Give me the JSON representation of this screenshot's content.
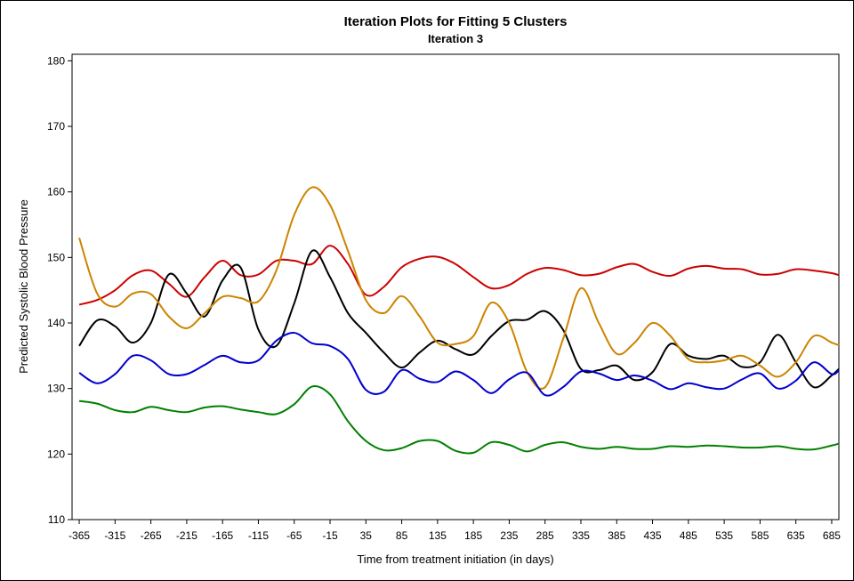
{
  "chart_data": {
    "type": "line",
    "title": "Iteration Plots for Fitting 5 Clusters",
    "subtitle": "Iteration 3",
    "xlabel": "Time from treatment initiation (in days)",
    "ylabel": "Predicted Systolic Blood Pressure",
    "xlim": [
      -375,
      695
    ],
    "ylim": [
      110,
      181
    ],
    "x_ticks": [
      -365,
      -315,
      -265,
      -215,
      -165,
      -115,
      -65,
      -15,
      35,
      85,
      135,
      185,
      235,
      285,
      335,
      385,
      435,
      485,
      535,
      585,
      635,
      685
    ],
    "y_ticks": [
      110,
      120,
      130,
      140,
      150,
      160,
      170,
      180
    ],
    "grid": false,
    "legend": "none",
    "series": [
      {
        "color": "#cc0000",
        "x": [
          -365,
          -340,
          -315,
          -290,
          -265,
          -240,
          -215,
          -190,
          -165,
          -140,
          -115,
          -90,
          -65,
          -40,
          -15,
          10,
          35,
          60,
          85,
          110,
          135,
          160,
          185,
          210,
          235,
          260,
          285,
          310,
          335,
          360,
          385,
          410,
          435,
          460,
          485,
          510,
          535,
          560,
          585,
          610,
          635,
          660,
          685,
          695
        ],
        "values": [
          142.8,
          143.5,
          145,
          147.3,
          148,
          146,
          144,
          147,
          149.5,
          147.3,
          147.4,
          149.5,
          149.5,
          149,
          151.8,
          149,
          144.3,
          145.5,
          148.5,
          149.8,
          150.1,
          149,
          147,
          145.3,
          145.8,
          147.5,
          148.4,
          148.1,
          147.3,
          147.5,
          148.5,
          149,
          147.8,
          147.2,
          148.3,
          148.7,
          148.3,
          148.2,
          147.4,
          147.5,
          148.2,
          148,
          147.6,
          147.3
        ]
      },
      {
        "color": "#000000",
        "x": [
          -365,
          -340,
          -315,
          -290,
          -265,
          -240,
          -215,
          -190,
          -165,
          -140,
          -115,
          -90,
          -65,
          -40,
          -15,
          10,
          35,
          60,
          85,
          110,
          135,
          160,
          185,
          210,
          235,
          260,
          285,
          310,
          335,
          360,
          385,
          410,
          435,
          460,
          485,
          510,
          535,
          560,
          585,
          610,
          635,
          660,
          685,
          695
        ],
        "values": [
          136.5,
          140.4,
          139.5,
          137,
          140,
          147.4,
          144.5,
          141,
          146.5,
          148.5,
          139,
          136.5,
          143,
          151,
          147,
          141.5,
          138.5,
          135.5,
          133.2,
          135.5,
          137.3,
          136,
          135.2,
          138,
          140.3,
          140.5,
          141.8,
          139,
          133,
          132.8,
          133.5,
          131.3,
          132.5,
          136.8,
          135,
          134.5,
          135,
          133.3,
          134,
          138.2,
          134,
          130.2,
          132,
          133
        ]
      },
      {
        "color": "#cc8400",
        "x": [
          -365,
          -340,
          -315,
          -290,
          -265,
          -240,
          -215,
          -190,
          -165,
          -140,
          -115,
          -90,
          -65,
          -40,
          -15,
          10,
          35,
          60,
          85,
          110,
          135,
          160,
          185,
          210,
          235,
          260,
          285,
          310,
          335,
          360,
          385,
          410,
          435,
          460,
          485,
          510,
          535,
          560,
          585,
          610,
          635,
          660,
          685,
          695
        ],
        "values": [
          153,
          144.5,
          142.5,
          144.5,
          144.4,
          141,
          139.2,
          141.5,
          144,
          143.8,
          143.3,
          148,
          156.5,
          160.7,
          158,
          151,
          143.5,
          141.5,
          144.1,
          141,
          137,
          136.8,
          138,
          143.1,
          140,
          132.5,
          130.2,
          137.5,
          145.3,
          140,
          135.3,
          137,
          140,
          138,
          134.5,
          134,
          134.3,
          135,
          133.5,
          131.8,
          134,
          138,
          137,
          136.6
        ]
      },
      {
        "color": "#0000cc",
        "x": [
          -365,
          -340,
          -315,
          -290,
          -265,
          -240,
          -215,
          -190,
          -165,
          -140,
          -115,
          -90,
          -65,
          -40,
          -15,
          10,
          35,
          60,
          85,
          110,
          135,
          160,
          185,
          210,
          235,
          260,
          285,
          310,
          335,
          360,
          385,
          410,
          435,
          460,
          485,
          510,
          535,
          560,
          585,
          610,
          635,
          660,
          685,
          695
        ],
        "values": [
          132.4,
          130.8,
          132.2,
          135,
          134.3,
          132.2,
          132.2,
          133.6,
          135,
          134,
          134.3,
          137.3,
          138.5,
          136.9,
          136.5,
          134.5,
          129.8,
          129.5,
          132.8,
          131.5,
          131,
          132.6,
          131.3,
          129.3,
          131.4,
          132.4,
          129,
          130.2,
          132.6,
          132.3,
          131.3,
          132,
          131.2,
          129.9,
          130.8,
          130.2,
          130,
          131.4,
          132.3,
          130,
          131.2,
          134,
          132.2,
          132.8
        ]
      },
      {
        "color": "#008000",
        "x": [
          -365,
          -340,
          -315,
          -290,
          -265,
          -240,
          -215,
          -190,
          -165,
          -140,
          -115,
          -90,
          -65,
          -40,
          -15,
          10,
          35,
          60,
          85,
          110,
          135,
          160,
          185,
          210,
          235,
          260,
          285,
          310,
          335,
          360,
          385,
          410,
          435,
          460,
          485,
          510,
          535,
          560,
          585,
          610,
          635,
          660,
          685,
          695
        ],
        "values": [
          128.1,
          127.7,
          126.7,
          126.4,
          127.2,
          126.7,
          126.4,
          127.1,
          127.3,
          126.8,
          126.4,
          126.1,
          127.6,
          130.3,
          129.1,
          125,
          122,
          120.6,
          120.9,
          122,
          122,
          120.5,
          120.2,
          121.8,
          121.4,
          120.4,
          121.4,
          121.8,
          121.1,
          120.8,
          121.1,
          120.8,
          120.8,
          121.2,
          121.1,
          121.3,
          121.2,
          121,
          121,
          121.2,
          120.8,
          120.7,
          121.3,
          121.6
        ]
      }
    ]
  }
}
